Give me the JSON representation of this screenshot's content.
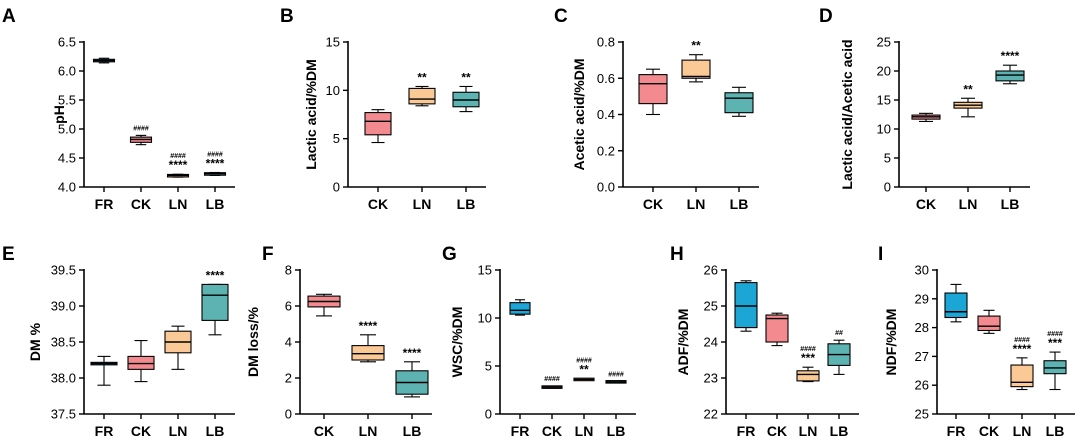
{
  "colors": {
    "FR": "#1ba6d6",
    "CK": "#f28a8f",
    "LN": "#fbc995",
    "LB": "#5cb3b1"
  },
  "chart_data": [
    {
      "panel": "A",
      "type": "box",
      "xlabel": "",
      "ylabel": "pH",
      "ylim": [
        4.0,
        6.5
      ],
      "yticks": [
        "4.0",
        "4.5",
        "5.0",
        "5.5",
        "6.0",
        "6.5"
      ],
      "categories": [
        "FR",
        "CK",
        "LN",
        "LB"
      ],
      "boxes": [
        {
          "min": 6.14,
          "q1": 6.16,
          "median": 6.18,
          "q3": 6.2,
          "max": 6.22,
          "stars": "",
          "hashes": ""
        },
        {
          "min": 4.73,
          "q1": 4.77,
          "median": 4.82,
          "q3": 4.86,
          "max": 4.89,
          "stars": "",
          "hashes": "####"
        },
        {
          "min": 4.17,
          "q1": 4.18,
          "median": 4.2,
          "q3": 4.21,
          "max": 4.22,
          "stars": "****",
          "hashes": "####"
        },
        {
          "min": 4.2,
          "q1": 4.21,
          "median": 4.23,
          "q3": 4.24,
          "max": 4.25,
          "stars": "****",
          "hashes": "####"
        }
      ]
    },
    {
      "panel": "B",
      "type": "box",
      "xlabel": "",
      "ylabel": "Lactic acid/%DM",
      "ylim": [
        0,
        15
      ],
      "yticks": [
        "0",
        "5",
        "10",
        "15"
      ],
      "categories": [
        "CK",
        "LN",
        "LB"
      ],
      "boxes": [
        {
          "min": 4.6,
          "q1": 5.4,
          "median": 6.8,
          "q3": 7.7,
          "max": 8.0,
          "stars": "",
          "hashes": ""
        },
        {
          "min": 8.4,
          "q1": 8.6,
          "median": 9.1,
          "q3": 10.2,
          "max": 10.4,
          "stars": "**",
          "hashes": ""
        },
        {
          "min": 7.8,
          "q1": 8.3,
          "median": 9.0,
          "q3": 9.8,
          "max": 10.4,
          "stars": "**",
          "hashes": ""
        }
      ]
    },
    {
      "panel": "C",
      "type": "box",
      "xlabel": "",
      "ylabel": "Acetic acid/%DM",
      "ylim": [
        0.0,
        0.8
      ],
      "yticks": [
        "0.0",
        "0.2",
        "0.4",
        "0.6",
        "0.8"
      ],
      "categories": [
        "CK",
        "LN",
        "LB"
      ],
      "boxes": [
        {
          "min": 0.4,
          "q1": 0.46,
          "median": 0.57,
          "q3": 0.62,
          "max": 0.65,
          "stars": "",
          "hashes": ""
        },
        {
          "min": 0.58,
          "q1": 0.6,
          "median": 0.61,
          "q3": 0.7,
          "max": 0.73,
          "stars": "**",
          "hashes": ""
        },
        {
          "min": 0.39,
          "q1": 0.41,
          "median": 0.49,
          "q3": 0.52,
          "max": 0.55,
          "stars": "",
          "hashes": ""
        }
      ]
    },
    {
      "panel": "D",
      "type": "box",
      "xlabel": "",
      "ylabel": "Lactic acid/Acetic acid",
      "ylim": [
        0,
        25
      ],
      "yticks": [
        "0",
        "5",
        "10",
        "15",
        "20",
        "25"
      ],
      "categories": [
        "CK",
        "LN",
        "LB"
      ],
      "boxes": [
        {
          "min": 11.3,
          "q1": 11.7,
          "median": 12.1,
          "q3": 12.4,
          "max": 12.7,
          "stars": "",
          "hashes": ""
        },
        {
          "min": 12.1,
          "q1": 13.6,
          "median": 14.1,
          "q3": 14.6,
          "max": 15.3,
          "stars": "**",
          "hashes": ""
        },
        {
          "min": 17.8,
          "q1": 18.3,
          "median": 19.3,
          "q3": 20.0,
          "max": 21.0,
          "stars": "****",
          "hashes": ""
        }
      ]
    },
    {
      "panel": "E",
      "type": "box",
      "xlabel": "",
      "ylabel": "DM %",
      "ylim": [
        37.5,
        39.5
      ],
      "yticks": [
        "37.5",
        "38.0",
        "38.5",
        "39.0",
        "39.5"
      ],
      "categories": [
        "FR",
        "CK",
        "LN",
        "LB"
      ],
      "boxes": [
        {
          "min": 37.9,
          "q1": 38.2,
          "median": 38.2,
          "q3": 38.2,
          "max": 38.3,
          "stars": "",
          "hashes": ""
        },
        {
          "min": 37.95,
          "q1": 38.12,
          "median": 38.2,
          "q3": 38.3,
          "max": 38.52,
          "stars": "",
          "hashes": ""
        },
        {
          "min": 38.12,
          "q1": 38.35,
          "median": 38.5,
          "q3": 38.65,
          "max": 38.72,
          "stars": "",
          "hashes": ""
        },
        {
          "min": 38.6,
          "q1": 38.8,
          "median": 39.15,
          "q3": 39.3,
          "max": 39.3,
          "stars": "****",
          "hashes": ""
        }
      ]
    },
    {
      "panel": "F",
      "type": "box",
      "xlabel": "",
      "ylabel": "DM loss/%",
      "ylim": [
        0,
        8
      ],
      "yticks": [
        "0",
        "2",
        "4",
        "6",
        "8"
      ],
      "categories": [
        "CK",
        "LN",
        "LB"
      ],
      "boxes": [
        {
          "min": 5.45,
          "q1": 5.95,
          "median": 6.25,
          "q3": 6.55,
          "max": 6.65,
          "stars": "",
          "hashes": ""
        },
        {
          "min": 2.9,
          "q1": 3.0,
          "median": 3.35,
          "q3": 3.8,
          "max": 4.4,
          "stars": "****",
          "hashes": ""
        },
        {
          "min": 0.95,
          "q1": 1.1,
          "median": 1.75,
          "q3": 2.4,
          "max": 2.9,
          "stars": "****",
          "hashes": ""
        }
      ]
    },
    {
      "panel": "G",
      "type": "box",
      "xlabel": "",
      "ylabel": "WSC/%DM",
      "ylim": [
        0,
        15
      ],
      "yticks": [
        "0",
        "5",
        "10",
        "15"
      ],
      "categories": [
        "FR",
        "CK",
        "LN",
        "LB"
      ],
      "boxes": [
        {
          "min": 10.3,
          "q1": 10.4,
          "median": 10.8,
          "q3": 11.6,
          "max": 11.9,
          "stars": "",
          "hashes": ""
        },
        {
          "min": 2.7,
          "q1": 2.75,
          "median": 2.8,
          "q3": 2.85,
          "max": 2.9,
          "stars": "",
          "hashes": "####"
        },
        {
          "min": 3.5,
          "q1": 3.55,
          "median": 3.6,
          "q3": 3.65,
          "max": 3.7,
          "stars": "**",
          "hashes": "####"
        },
        {
          "min": 3.3,
          "q1": 3.32,
          "median": 3.35,
          "q3": 3.38,
          "max": 3.4,
          "stars": "",
          "hashes": "####"
        }
      ]
    },
    {
      "panel": "H",
      "type": "box",
      "xlabel": "",
      "ylabel": "ADF/%DM",
      "ylim": [
        22,
        26
      ],
      "yticks": [
        "22",
        "23",
        "24",
        "25",
        "26"
      ],
      "categories": [
        "FR",
        "CK",
        "LN",
        "LB"
      ],
      "boxes": [
        {
          "min": 24.3,
          "q1": 24.4,
          "median": 25.0,
          "q3": 25.65,
          "max": 25.7,
          "stars": "",
          "hashes": ""
        },
        {
          "min": 23.9,
          "q1": 24.0,
          "median": 24.65,
          "q3": 24.75,
          "max": 24.8,
          "stars": "",
          "hashes": ""
        },
        {
          "min": 22.9,
          "q1": 22.92,
          "median": 23.1,
          "q3": 23.2,
          "max": 23.3,
          "stars": "***",
          "hashes": "####"
        },
        {
          "min": 23.1,
          "q1": 23.35,
          "median": 23.65,
          "q3": 23.95,
          "max": 24.05,
          "stars": "",
          "hashes": "##"
        }
      ]
    },
    {
      "panel": "I",
      "type": "box",
      "xlabel": "",
      "ylabel": "NDF/%DM",
      "ylim": [
        25,
        30
      ],
      "yticks": [
        "25",
        "26",
        "27",
        "28",
        "29",
        "30"
      ],
      "categories": [
        "FR",
        "CK",
        "LN",
        "LB"
      ],
      "boxes": [
        {
          "min": 28.2,
          "q1": 28.35,
          "median": 28.55,
          "q3": 29.2,
          "max": 29.5,
          "stars": "",
          "hashes": ""
        },
        {
          "min": 27.8,
          "q1": 27.9,
          "median": 28.05,
          "q3": 28.4,
          "max": 28.6,
          "stars": "",
          "hashes": ""
        },
        {
          "min": 25.85,
          "q1": 25.95,
          "median": 26.1,
          "q3": 26.7,
          "max": 26.95,
          "stars": "****",
          "hashes": "####"
        },
        {
          "min": 25.85,
          "q1": 26.4,
          "median": 26.6,
          "q3": 26.85,
          "max": 27.15,
          "stars": "***",
          "hashes": "####"
        }
      ]
    }
  ]
}
